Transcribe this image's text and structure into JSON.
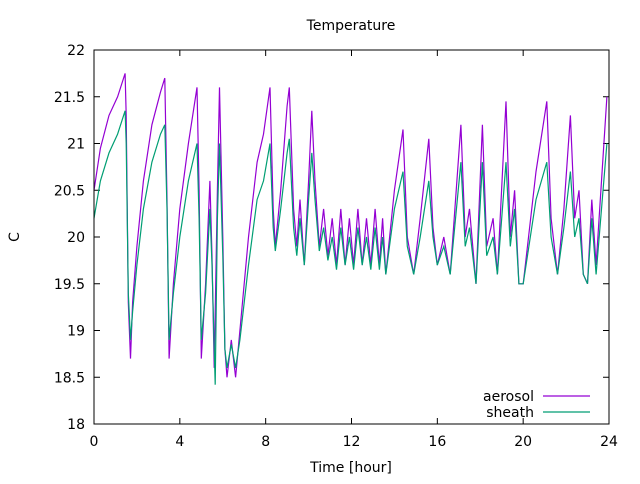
{
  "chart_data": {
    "type": "line",
    "title": "Temperature",
    "xlabel": "Time [hour]",
    "ylabel": "C",
    "xlim": [
      0,
      24
    ],
    "ylim": [
      18,
      22
    ],
    "xticks": [
      0,
      4,
      8,
      12,
      16,
      20,
      24
    ],
    "xtick_labels": [
      "0",
      "4",
      "8",
      "12",
      "16",
      "20",
      "24"
    ],
    "yticks": [
      18,
      18.5,
      19,
      19.5,
      20,
      20.5,
      21,
      21.5,
      22
    ],
    "ytick_labels": [
      "18",
      "18.5",
      "19",
      "19.5",
      "20",
      "20.5",
      "21",
      "21.5",
      "22"
    ],
    "grid": false,
    "legend_position": "bottom-right",
    "series": [
      {
        "name": "aerosol",
        "color": "#9400d3",
        "points": [
          [
            0,
            20.5
          ],
          [
            0.3,
            20.95
          ],
          [
            0.7,
            21.3
          ],
          [
            1.1,
            21.5
          ],
          [
            1.45,
            21.75
          ],
          [
            1.5,
            21.3
          ],
          [
            1.6,
            19.3
          ],
          [
            1.7,
            18.7
          ],
          [
            1.8,
            19.3
          ],
          [
            2.0,
            19.9
          ],
          [
            2.3,
            20.6
          ],
          [
            2.7,
            21.2
          ],
          [
            3.1,
            21.55
          ],
          [
            3.3,
            21.7
          ],
          [
            3.4,
            20.4
          ],
          [
            3.5,
            18.7
          ],
          [
            3.7,
            19.5
          ],
          [
            4.0,
            20.3
          ],
          [
            4.4,
            21.0
          ],
          [
            4.8,
            21.6
          ],
          [
            4.9,
            20.5
          ],
          [
            5.0,
            18.7
          ],
          [
            5.2,
            19.5
          ],
          [
            5.4,
            20.6
          ],
          [
            5.5,
            19.8
          ],
          [
            5.6,
            18.6
          ],
          [
            5.75,
            20.5
          ],
          [
            5.85,
            21.6
          ],
          [
            6.0,
            20.0
          ],
          [
            6.1,
            18.8
          ],
          [
            6.2,
            18.5
          ],
          [
            6.4,
            18.9
          ],
          [
            6.6,
            18.5
          ],
          [
            6.8,
            19.0
          ],
          [
            7.2,
            20.0
          ],
          [
            7.6,
            20.8
          ],
          [
            7.9,
            21.1
          ],
          [
            8.2,
            21.6
          ],
          [
            8.35,
            20.3
          ],
          [
            8.45,
            19.9
          ],
          [
            8.7,
            20.5
          ],
          [
            9.0,
            21.4
          ],
          [
            9.1,
            21.6
          ],
          [
            9.3,
            20.3
          ],
          [
            9.45,
            19.9
          ],
          [
            9.6,
            20.4
          ],
          [
            9.8,
            19.7
          ],
          [
            10.0,
            20.6
          ],
          [
            10.15,
            21.35
          ],
          [
            10.3,
            20.6
          ],
          [
            10.5,
            19.9
          ],
          [
            10.7,
            20.3
          ],
          [
            10.9,
            19.8
          ],
          [
            11.1,
            20.2
          ],
          [
            11.3,
            19.7
          ],
          [
            11.5,
            20.3
          ],
          [
            11.7,
            19.7
          ],
          [
            11.9,
            20.2
          ],
          [
            12.1,
            19.7
          ],
          [
            12.3,
            20.3
          ],
          [
            12.5,
            19.7
          ],
          [
            12.7,
            20.2
          ],
          [
            12.9,
            19.7
          ],
          [
            13.1,
            20.3
          ],
          [
            13.3,
            19.7
          ],
          [
            13.45,
            20.2
          ],
          [
            13.6,
            19.6
          ],
          [
            14.0,
            20.5
          ],
          [
            14.4,
            21.15
          ],
          [
            14.6,
            20.0
          ],
          [
            14.9,
            19.6
          ],
          [
            15.2,
            20.2
          ],
          [
            15.6,
            21.05
          ],
          [
            15.8,
            20.1
          ],
          [
            16.0,
            19.7
          ],
          [
            16.3,
            20.0
          ],
          [
            16.6,
            19.6
          ],
          [
            17.1,
            21.2
          ],
          [
            17.3,
            20.0
          ],
          [
            17.5,
            20.3
          ],
          [
            17.8,
            19.5
          ],
          [
            18.1,
            21.2
          ],
          [
            18.3,
            19.9
          ],
          [
            18.6,
            20.2
          ],
          [
            18.8,
            19.6
          ],
          [
            19.2,
            21.45
          ],
          [
            19.4,
            20.0
          ],
          [
            19.6,
            20.5
          ],
          [
            19.8,
            19.5
          ],
          [
            20.0,
            19.5
          ],
          [
            20.6,
            20.7
          ],
          [
            21.1,
            21.45
          ],
          [
            21.3,
            20.2
          ],
          [
            21.6,
            19.6
          ],
          [
            21.9,
            20.3
          ],
          [
            22.2,
            21.3
          ],
          [
            22.4,
            20.2
          ],
          [
            22.6,
            20.5
          ],
          [
            22.8,
            19.6
          ],
          [
            23.0,
            19.5
          ],
          [
            23.2,
            20.4
          ],
          [
            23.4,
            19.7
          ],
          [
            23.9,
            21.5
          ]
        ]
      },
      {
        "name": "sheath",
        "color": "#009e73",
        "points": [
          [
            0,
            20.2
          ],
          [
            0.3,
            20.6
          ],
          [
            0.7,
            20.9
          ],
          [
            1.1,
            21.1
          ],
          [
            1.45,
            21.35
          ],
          [
            1.5,
            21.0
          ],
          [
            1.6,
            19.4
          ],
          [
            1.7,
            18.9
          ],
          [
            1.8,
            19.2
          ],
          [
            2.0,
            19.7
          ],
          [
            2.3,
            20.3
          ],
          [
            2.7,
            20.8
          ],
          [
            3.1,
            21.1
          ],
          [
            3.3,
            21.2
          ],
          [
            3.4,
            20.3
          ],
          [
            3.5,
            18.9
          ],
          [
            3.7,
            19.4
          ],
          [
            4.0,
            20.0
          ],
          [
            4.4,
            20.6
          ],
          [
            4.8,
            21.0
          ],
          [
            4.9,
            20.2
          ],
          [
            5.0,
            18.9
          ],
          [
            5.2,
            19.4
          ],
          [
            5.4,
            20.3
          ],
          [
            5.5,
            19.7
          ],
          [
            5.65,
            18.42
          ],
          [
            5.75,
            20.2
          ],
          [
            5.85,
            21.0
          ],
          [
            6.0,
            19.8
          ],
          [
            6.1,
            18.8
          ],
          [
            6.2,
            18.6
          ],
          [
            6.4,
            18.85
          ],
          [
            6.6,
            18.6
          ],
          [
            6.8,
            18.9
          ],
          [
            7.2,
            19.7
          ],
          [
            7.6,
            20.4
          ],
          [
            7.9,
            20.6
          ],
          [
            8.2,
            21.0
          ],
          [
            8.35,
            20.1
          ],
          [
            8.45,
            19.85
          ],
          [
            8.7,
            20.3
          ],
          [
            9.0,
            20.9
          ],
          [
            9.1,
            21.05
          ],
          [
            9.3,
            20.1
          ],
          [
            9.45,
            19.8
          ],
          [
            9.6,
            20.2
          ],
          [
            9.8,
            19.7
          ],
          [
            10.0,
            20.4
          ],
          [
            10.15,
            20.9
          ],
          [
            10.3,
            20.4
          ],
          [
            10.5,
            19.85
          ],
          [
            10.7,
            20.1
          ],
          [
            10.9,
            19.75
          ],
          [
            11.1,
            20.0
          ],
          [
            11.3,
            19.65
          ],
          [
            11.5,
            20.1
          ],
          [
            11.7,
            19.7
          ],
          [
            11.9,
            20.0
          ],
          [
            12.1,
            19.65
          ],
          [
            12.3,
            20.1
          ],
          [
            12.5,
            19.7
          ],
          [
            12.7,
            20.0
          ],
          [
            12.9,
            19.65
          ],
          [
            13.1,
            20.1
          ],
          [
            13.3,
            19.65
          ],
          [
            13.45,
            20.0
          ],
          [
            13.6,
            19.6
          ],
          [
            14.0,
            20.3
          ],
          [
            14.4,
            20.7
          ],
          [
            14.6,
            19.9
          ],
          [
            14.9,
            19.6
          ],
          [
            15.2,
            20.0
          ],
          [
            15.6,
            20.6
          ],
          [
            15.8,
            20.0
          ],
          [
            16.0,
            19.7
          ],
          [
            16.3,
            19.9
          ],
          [
            16.6,
            19.6
          ],
          [
            17.1,
            20.8
          ],
          [
            17.3,
            19.9
          ],
          [
            17.5,
            20.1
          ],
          [
            17.8,
            19.5
          ],
          [
            18.1,
            20.8
          ],
          [
            18.3,
            19.8
          ],
          [
            18.6,
            20.0
          ],
          [
            18.8,
            19.6
          ],
          [
            19.2,
            20.8
          ],
          [
            19.4,
            19.9
          ],
          [
            19.6,
            20.3
          ],
          [
            19.8,
            19.5
          ],
          [
            20.0,
            19.5
          ],
          [
            20.6,
            20.4
          ],
          [
            21.1,
            20.8
          ],
          [
            21.3,
            20.0
          ],
          [
            21.6,
            19.6
          ],
          [
            21.9,
            20.1
          ],
          [
            22.2,
            20.7
          ],
          [
            22.4,
            20.0
          ],
          [
            22.6,
            20.2
          ],
          [
            22.8,
            19.6
          ],
          [
            23.0,
            19.5
          ],
          [
            23.2,
            20.2
          ],
          [
            23.4,
            19.6
          ],
          [
            23.9,
            21.0
          ]
        ]
      }
    ]
  }
}
